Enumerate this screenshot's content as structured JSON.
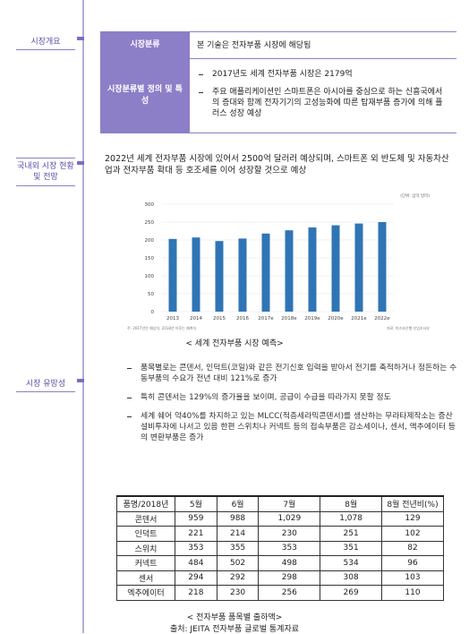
{
  "sections": [
    "시장개요",
    "국내외 시장 현황 및 전망",
    "시장 유망성"
  ],
  "overview": {
    "rows": [
      {
        "header": "시장분류",
        "content": "본 기술은 전자부품 시장에 해당됨"
      },
      {
        "header": "시장분류별 정의 및 특성",
        "bullets": [
          "2017년도 세계 전자부품 시장은 2179억",
          "주요 애플리케이션인 스마트폰은 아시아를 중심으로 하는 신흥국에서의 증대와 함께 전자기기의 고성능화에 따른 탑재부품 증가에 의해 플러스 성장 예상"
        ]
      }
    ]
  },
  "outlook": "2022년 세계 전자부품 시장에 있어서 2500억 달러러 예상되며, 스마트폰 외 반도체 및 자동차산업과 전자부품 확대 등 호조세를 이어 성장할 것으로 예상",
  "chart_data": {
    "type": "bar",
    "unit_note": "(단위: 십억 달러)",
    "categories": [
      "2013",
      "2014",
      "2015",
      "2016",
      "2017e",
      "2018e",
      "2019e",
      "2020e",
      "2021e",
      "2022e"
    ],
    "values": [
      203,
      207,
      197,
      204,
      218,
      227,
      235,
      241,
      246,
      250
    ],
    "color": "#2f75b5",
    "ylim": [
      0,
      300
    ],
    "yticks": [
      0,
      50,
      100,
      150,
      200,
      250,
      300
    ],
    "grid": true,
    "footnote_left": "주: 2017년은 예상치, 2018년 이후는 예측치",
    "footnote_right": "자료: 미즈호은행 산업조사부"
  },
  "chart_caption": "< 세계 전자부품 시장 예측>",
  "promise": [
    "품목별로는 콘덴서, 인덕트(코일)와 같은 전기신호 입력을 받아서 전기를 축적하거나 정돈하는 수동부품의 수요가 전년 대비 121%로 증가",
    "특히 콘덴서는 129%의 증가율을 보이며, 공급이 수급을 따라가지 못할 정도",
    "세계 쉐어 약40%를 차지하고 있는 MLCC(적층세라믹콘덴서)를 생산하는 무라타제작소는 증산 설비투자에 나서고 있음 한편 스위치나 커넥트 등의 접속부품은 감소세이나, 센서, 액추에이터 등의 변환부품은 증가"
  ],
  "table": {
    "header": [
      "품명/2018년",
      "5월",
      "6월",
      "7월",
      "8월",
      "8월 전년비(%)"
    ],
    "rows": [
      [
        "콘덴서",
        "959",
        "988",
        "1,029",
        "1,078",
        "129"
      ],
      [
        "인덕트",
        "221",
        "214",
        "230",
        "251",
        "102"
      ],
      [
        "스위치",
        "353",
        "355",
        "353",
        "351",
        "82"
      ],
      [
        "커넥트",
        "484",
        "502",
        "498",
        "534",
        "96"
      ],
      [
        "센서",
        "294",
        "292",
        "298",
        "308",
        "103"
      ],
      [
        "엑추에이터",
        "218",
        "230",
        "256",
        "269",
        "110"
      ]
    ]
  },
  "table_caption": "< 전자부품 품목별 출하액>",
  "source": "출처: JEITA 전자부품 글로벌 통계자료"
}
